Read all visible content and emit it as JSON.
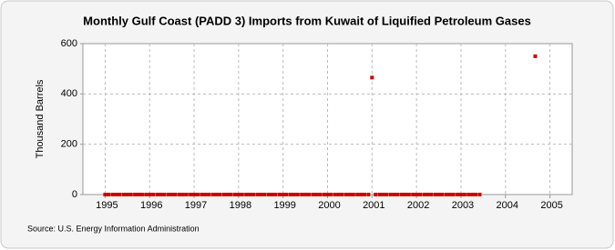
{
  "chart_data": {
    "type": "scatter",
    "title": "Monthly Gulf Coast (PADD 3) Imports from Kuwait of Liquified Petroleum Gases",
    "y_label": "Thousand Barrels",
    "source": "Source: U.S. Energy Information Administration",
    "color": "#cc0000",
    "grid": true,
    "xlim": [
      1994.5,
      2005.5
    ],
    "xticks": [
      1995,
      1996,
      1997,
      1998,
      1999,
      2000,
      2001,
      2002,
      2003,
      2004,
      2005
    ],
    "ylim": [
      0,
      600
    ],
    "yticks": [
      0,
      200,
      400,
      600
    ],
    "x": [
      1995,
      1995.08,
      1995.17,
      1995.25,
      1995.33,
      1995.42,
      1995.5,
      1995.58,
      1995.67,
      1995.75,
      1995.83,
      1995.92,
      1996,
      1996.08,
      1996.17,
      1996.25,
      1996.33,
      1996.42,
      1996.5,
      1996.58,
      1996.67,
      1996.75,
      1996.83,
      1996.92,
      1997,
      1997.08,
      1997.17,
      1997.25,
      1997.33,
      1997.42,
      1997.5,
      1997.58,
      1997.67,
      1997.75,
      1997.83,
      1997.92,
      1998,
      1998.08,
      1998.17,
      1998.25,
      1998.33,
      1998.42,
      1998.5,
      1998.58,
      1998.67,
      1998.75,
      1998.83,
      1998.92,
      1999,
      1999.08,
      1999.17,
      1999.25,
      1999.33,
      1999.42,
      1999.5,
      1999.58,
      1999.67,
      1999.75,
      1999.83,
      1999.92,
      2000,
      2000.08,
      2000.17,
      2000.25,
      2000.33,
      2000.42,
      2000.5,
      2000.58,
      2000.67,
      2000.75,
      2000.83,
      2000.92,
      2001,
      2001.08,
      2001.17,
      2001.25,
      2001.33,
      2001.42,
      2001.5,
      2001.58,
      2001.67,
      2001.75,
      2001.83,
      2001.92,
      2002,
      2002.08,
      2002.17,
      2002.25,
      2002.33,
      2002.42,
      2002.5,
      2002.58,
      2002.67,
      2002.75,
      2002.83,
      2002.92,
      2003,
      2003.08,
      2003.17,
      2003.25,
      2003.33,
      2003.42,
      2004.67
    ],
    "values": [
      0,
      0,
      0,
      0,
      0,
      0,
      0,
      0,
      0,
      0,
      0,
      0,
      0,
      0,
      0,
      0,
      0,
      0,
      0,
      0,
      0,
      0,
      0,
      0,
      0,
      0,
      0,
      0,
      0,
      0,
      0,
      0,
      0,
      0,
      0,
      0,
      0,
      0,
      0,
      0,
      0,
      0,
      0,
      0,
      0,
      0,
      0,
      0,
      0,
      0,
      0,
      0,
      0,
      0,
      0,
      0,
      0,
      0,
      0,
      0,
      0,
      0,
      0,
      0,
      0,
      0,
      0,
      0,
      0,
      0,
      0,
      0,
      465,
      0,
      0,
      0,
      0,
      0,
      0,
      0,
      0,
      0,
      0,
      0,
      0,
      0,
      0,
      0,
      0,
      0,
      0,
      0,
      0,
      0,
      0,
      0,
      0,
      0,
      0,
      0,
      0,
      0,
      550
    ]
  }
}
